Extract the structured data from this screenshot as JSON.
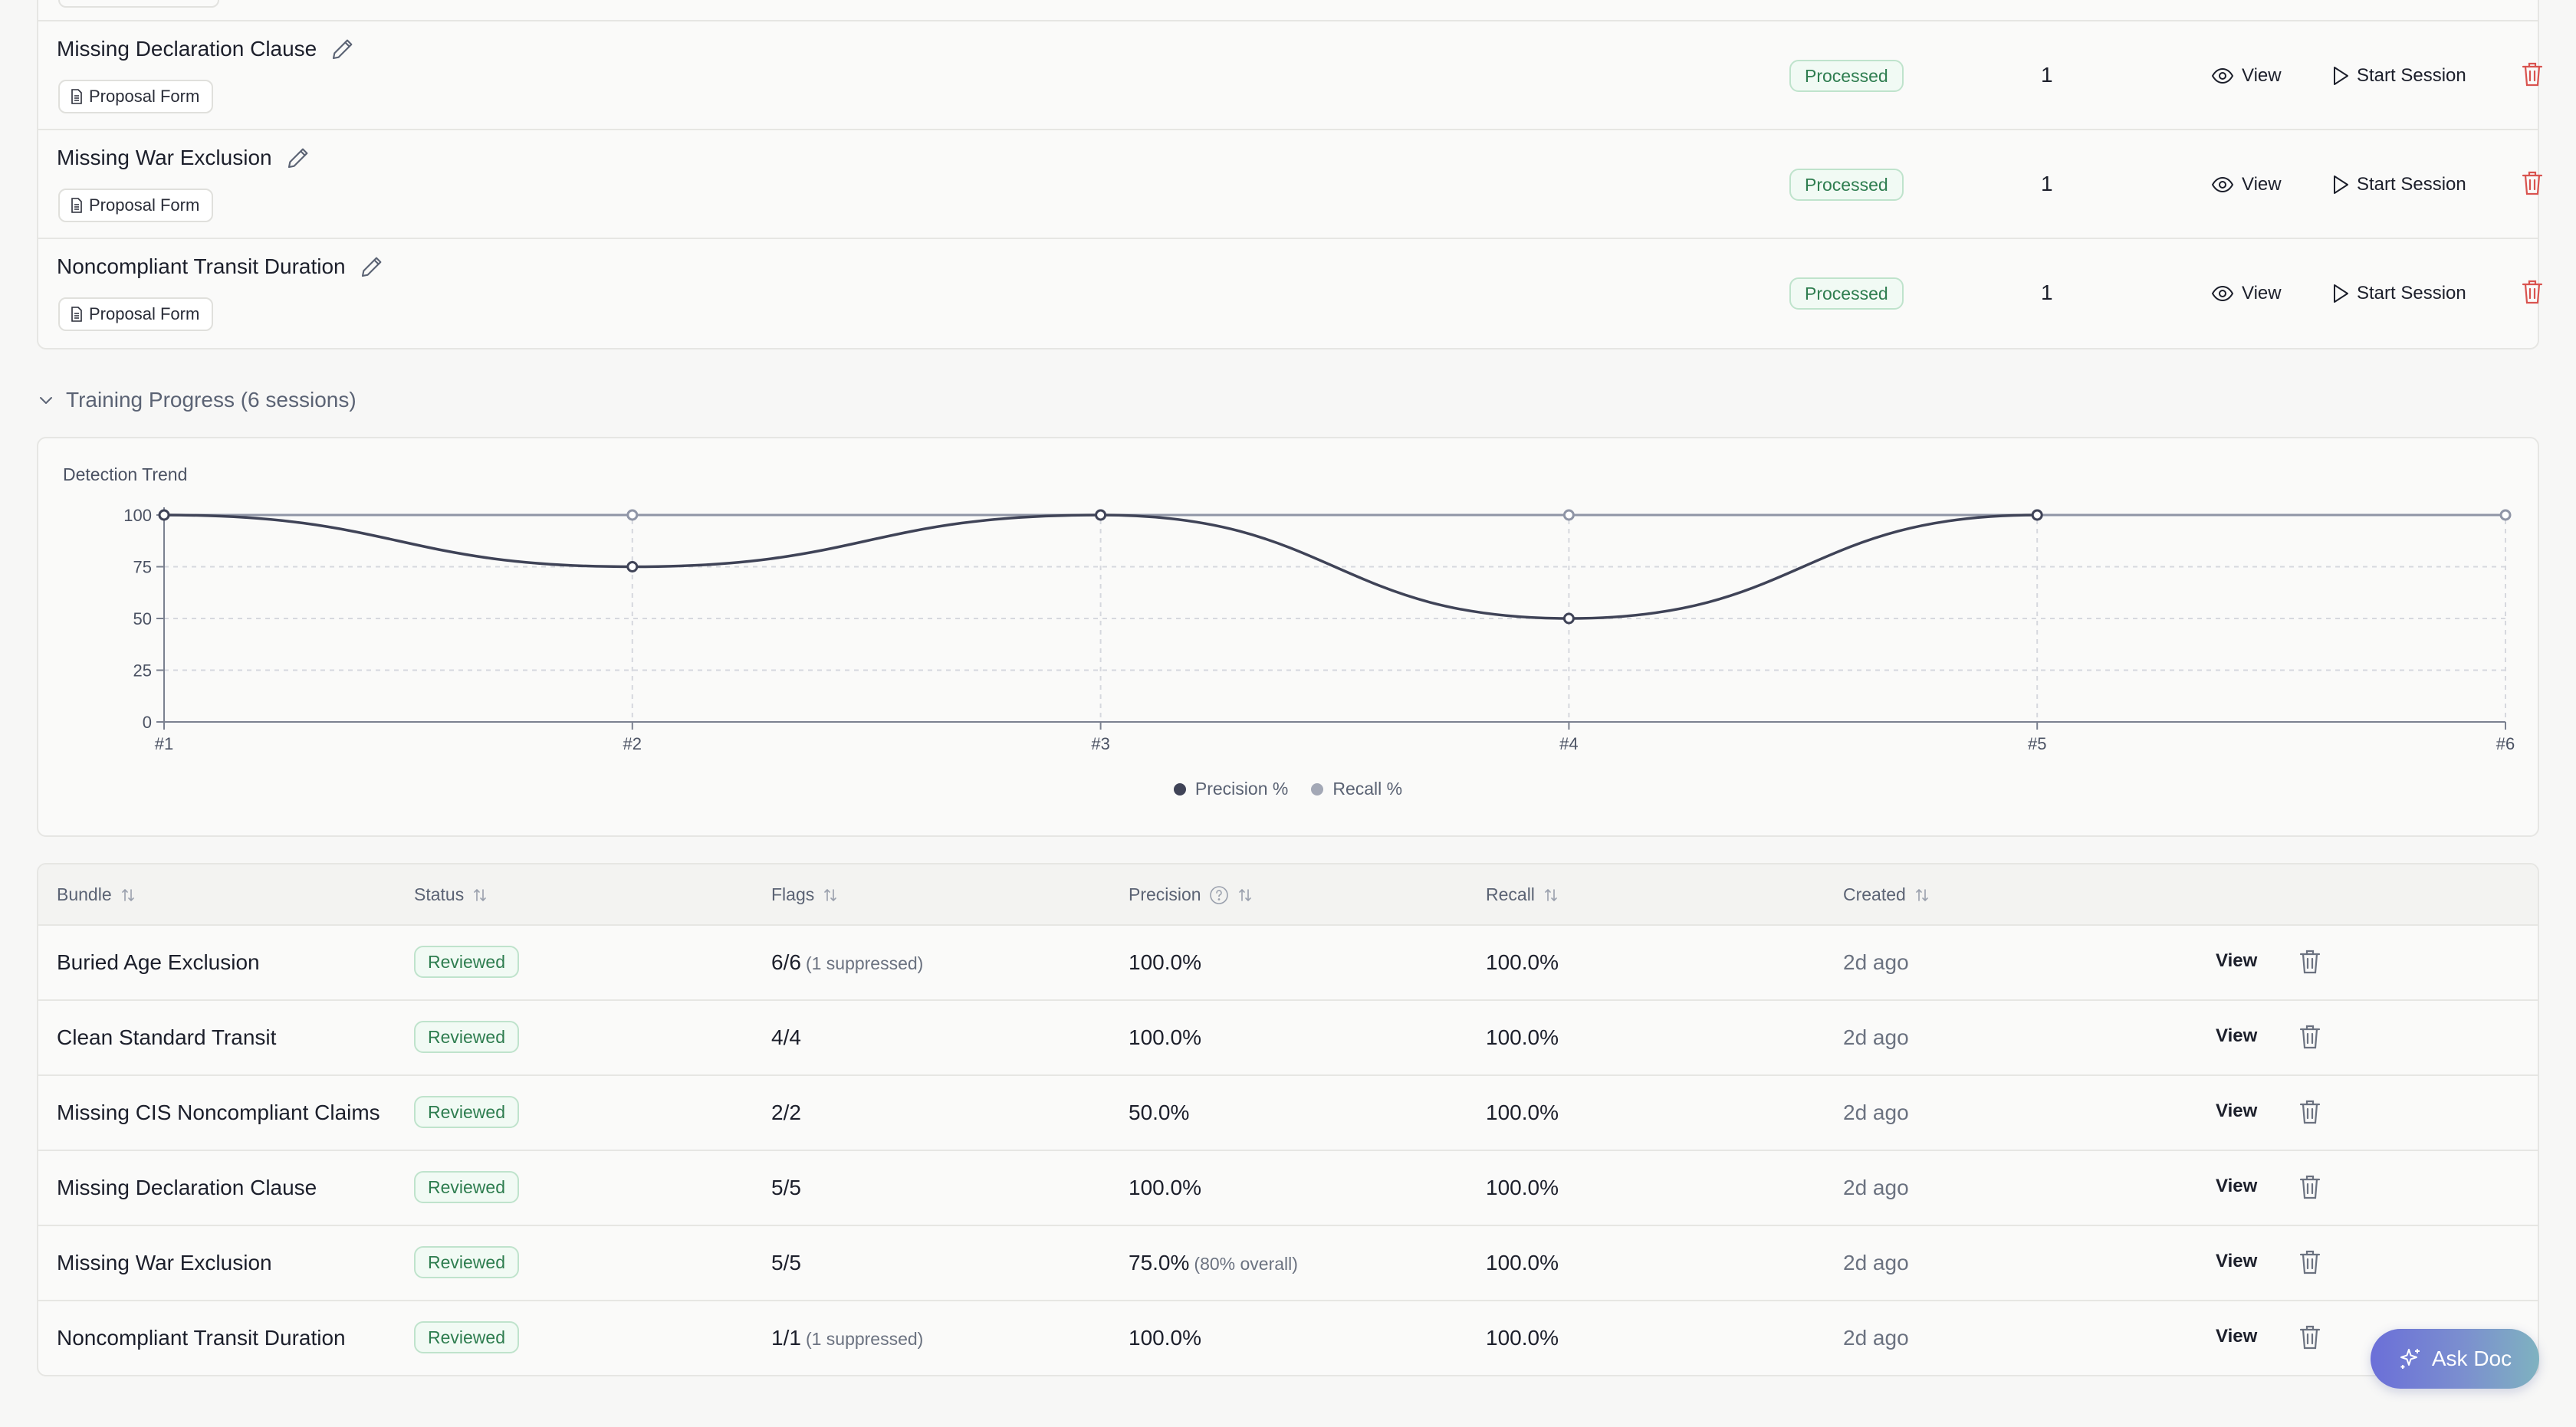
{
  "bundles": [
    {
      "name": "Missing Declaration Clause",
      "doc": "Proposal Form",
      "status": "Processed",
      "count": "1",
      "view": "View",
      "start": "Start Session"
    },
    {
      "name": "Missing War Exclusion",
      "doc": "Proposal Form",
      "status": "Processed",
      "count": "1",
      "view": "View",
      "start": "Start Session"
    },
    {
      "name": "Noncompliant Transit Duration",
      "doc": "Proposal Form",
      "status": "Processed",
      "count": "1",
      "view": "View",
      "start": "Start Session"
    }
  ],
  "training": {
    "header": "Training Progress (6 sessions)"
  },
  "chart": {
    "title": "Detection Trend"
  },
  "chart_data": {
    "type": "line",
    "title": "Detection Trend",
    "categories": [
      "#1",
      "#2",
      "#3",
      "#4",
      "#5",
      "#6"
    ],
    "y_ticks": [
      "0",
      "25",
      "50",
      "75",
      "100"
    ],
    "ylim": [
      0,
      100
    ],
    "grid": true,
    "legend_position": "bottom",
    "series": [
      {
        "name": "Precision %",
        "values": [
          100,
          75,
          100,
          50,
          100,
          null
        ],
        "color": "#3f4357"
      },
      {
        "name": "Recall %",
        "values": [
          100,
          100,
          100,
          100,
          100,
          100
        ],
        "color": "#8f95a6"
      }
    ]
  },
  "table": {
    "headers": {
      "bundle": "Bundle",
      "status": "Status",
      "flags": "Flags",
      "precision": "Precision",
      "recall": "Recall",
      "created": "Created"
    },
    "rows": [
      {
        "bundle": "Buried Age Exclusion",
        "status": "Reviewed",
        "flags": "6/6",
        "flags_note": "(1 suppressed)",
        "precision": "100.0%",
        "precision_note": "",
        "recall": "100.0%",
        "created": "2d ago",
        "view": "View"
      },
      {
        "bundle": "Clean Standard Transit",
        "status": "Reviewed",
        "flags": "4/4",
        "flags_note": "",
        "precision": "100.0%",
        "precision_note": "",
        "recall": "100.0%",
        "created": "2d ago",
        "view": "View"
      },
      {
        "bundle": "Missing CIS Noncompliant Claims",
        "status": "Reviewed",
        "flags": "2/2",
        "flags_note": "",
        "precision": "50.0%",
        "precision_note": "",
        "recall": "100.0%",
        "created": "2d ago",
        "view": "View"
      },
      {
        "bundle": "Missing Declaration Clause",
        "status": "Reviewed",
        "flags": "5/5",
        "flags_note": "",
        "precision": "100.0%",
        "precision_note": "",
        "recall": "100.0%",
        "created": "2d ago",
        "view": "View"
      },
      {
        "bundle": "Missing War Exclusion",
        "status": "Reviewed",
        "flags": "5/5",
        "flags_note": "",
        "precision": "75.0%",
        "precision_note": "(80% overall)",
        "recall": "100.0%",
        "created": "2d ago",
        "view": "View"
      },
      {
        "bundle": "Noncompliant Transit Duration",
        "status": "Reviewed",
        "flags": "1/1",
        "flags_note": "(1 suppressed)",
        "precision": "100.0%",
        "precision_note": "",
        "recall": "100.0%",
        "created": "2d ago",
        "view": "View"
      }
    ]
  },
  "ask_doc": {
    "label": "Ask Doc"
  },
  "colors": {
    "accent_green": "#2e7d4f",
    "delete_red": "#d9534f",
    "precision_line": "#3f4357",
    "recall_line": "#8f95a6"
  },
  "icons": {
    "edit": "pencil-icon",
    "doc": "document-icon",
    "view": "eye-icon",
    "start": "play-icon",
    "delete": "trash-icon",
    "collapse": "chevron-down-icon",
    "sort": "sort-icon",
    "help": "help-circle-icon",
    "ask": "sparkle-icon"
  }
}
